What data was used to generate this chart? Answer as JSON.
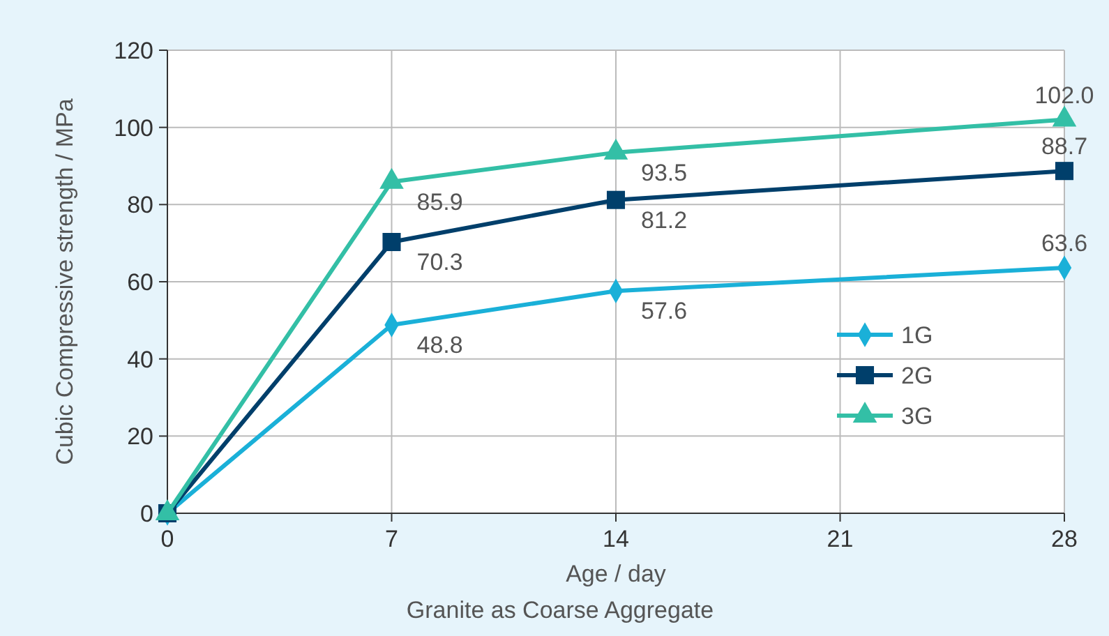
{
  "chart_data": {
    "type": "line",
    "xlabel": "Age / day",
    "ylabel": "Cubic Compressive strength / MPa",
    "annotations": [
      "Granite as Coarse Aggregate"
    ],
    "x": [
      0,
      7,
      14,
      28
    ],
    "xlim": [
      0,
      28
    ],
    "xticks": [
      0,
      7,
      14,
      21,
      28
    ],
    "ylim": [
      0,
      120
    ],
    "yticks": [
      0,
      20,
      40,
      60,
      80,
      100,
      120
    ],
    "grid": true,
    "legend": "right",
    "series": [
      {
        "name": "1G",
        "color": "#1ab0d8",
        "marker": "diamond",
        "values": [
          0,
          48.8,
          57.6,
          63.6
        ],
        "value_labels": [
          null,
          "48.8",
          "57.6",
          "63.6"
        ]
      },
      {
        "name": "2G",
        "color": "#003f6b",
        "marker": "square",
        "values": [
          0,
          70.3,
          81.2,
          88.7
        ],
        "value_labels": [
          null,
          "70.3",
          "81.2",
          "88.7"
        ]
      },
      {
        "name": "3G",
        "color": "#33bfa6",
        "marker": "triangle",
        "values": [
          0,
          85.9,
          93.5,
          102.0
        ],
        "value_labels": [
          null,
          "85.9",
          "93.5",
          "102.0"
        ]
      }
    ]
  }
}
